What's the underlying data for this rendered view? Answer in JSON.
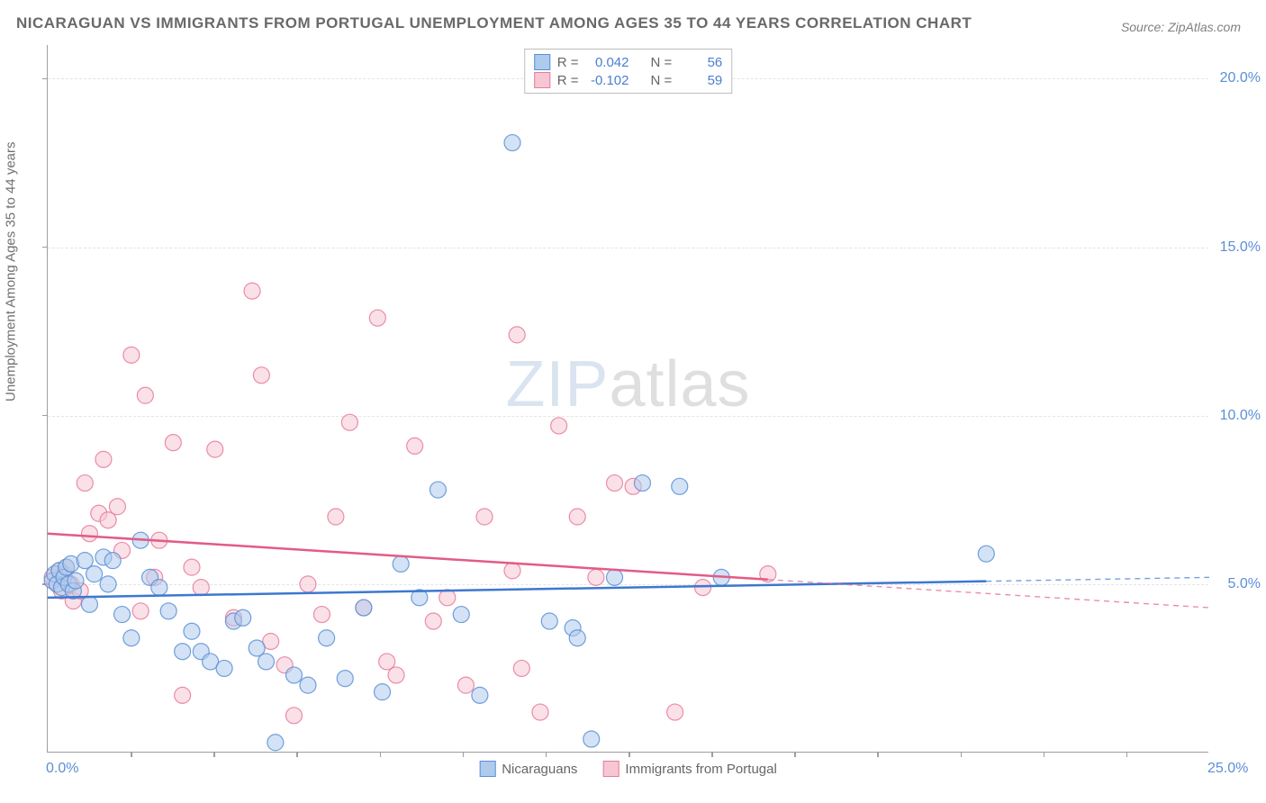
{
  "title": "NICARAGUAN VS IMMIGRANTS FROM PORTUGAL UNEMPLOYMENT AMONG AGES 35 TO 44 YEARS CORRELATION CHART",
  "source": "Source: ZipAtlas.com",
  "y_axis_label": "Unemployment Among Ages 35 to 44 years",
  "watermark_zip": "ZIP",
  "watermark_atlas": "atlas",
  "chart": {
    "type": "scatter",
    "xlim": [
      0,
      25
    ],
    "ylim": [
      0,
      21.0
    ],
    "x_ticks": [
      {
        "v": 0,
        "label": "0.0%"
      },
      {
        "v": 25,
        "label": "25.0%"
      }
    ],
    "y_ticks": [
      {
        "v": 5,
        "label": "5.0%"
      },
      {
        "v": 10,
        "label": "10.0%"
      },
      {
        "v": 15,
        "label": "15.0%"
      },
      {
        "v": 20,
        "label": "20.0%"
      }
    ],
    "grid_y": [
      5,
      10,
      15,
      20
    ],
    "background_color": "#ffffff",
    "grid_color": "#e4e4e4",
    "axis_color": "#9e9e9e",
    "tick_label_color": "#5b8fd6",
    "marker_radius": 9,
    "marker_opacity": 0.55,
    "series": [
      {
        "name": "Nicaraguans",
        "color_fill": "#aecbec",
        "color_stroke": "#5b8fd6",
        "R": "0.042",
        "N": "56",
        "trend": {
          "y_at_x0": 4.6,
          "y_at_x25": 5.2,
          "solid_until_x": 20.2,
          "line_color": "#3d78cf",
          "line_width": 2.5
        },
        "points": [
          [
            0.1,
            5.1
          ],
          [
            0.15,
            5.3
          ],
          [
            0.2,
            5.0
          ],
          [
            0.25,
            5.4
          ],
          [
            0.3,
            4.9
          ],
          [
            0.35,
            5.2
          ],
          [
            0.4,
            5.5
          ],
          [
            0.45,
            5.0
          ],
          [
            0.5,
            5.6
          ],
          [
            0.55,
            4.8
          ],
          [
            0.6,
            5.1
          ],
          [
            0.8,
            5.7
          ],
          [
            0.9,
            4.4
          ],
          [
            1.0,
            5.3
          ],
          [
            1.2,
            5.8
          ],
          [
            1.3,
            5.0
          ],
          [
            1.4,
            5.7
          ],
          [
            1.6,
            4.1
          ],
          [
            1.8,
            3.4
          ],
          [
            2.0,
            6.3
          ],
          [
            2.2,
            5.2
          ],
          [
            2.4,
            4.9
          ],
          [
            2.6,
            4.2
          ],
          [
            2.9,
            3.0
          ],
          [
            3.1,
            3.6
          ],
          [
            3.3,
            3.0
          ],
          [
            3.5,
            2.7
          ],
          [
            3.8,
            2.5
          ],
          [
            4.0,
            3.9
          ],
          [
            4.2,
            4.0
          ],
          [
            4.5,
            3.1
          ],
          [
            4.7,
            2.7
          ],
          [
            4.9,
            0.3
          ],
          [
            5.3,
            2.3
          ],
          [
            5.6,
            2.0
          ],
          [
            6.0,
            3.4
          ],
          [
            6.4,
            2.2
          ],
          [
            6.8,
            4.3
          ],
          [
            7.2,
            1.8
          ],
          [
            7.6,
            5.6
          ],
          [
            8.0,
            4.6
          ],
          [
            8.4,
            7.8
          ],
          [
            8.9,
            4.1
          ],
          [
            9.3,
            1.7
          ],
          [
            10.0,
            18.1
          ],
          [
            10.8,
            3.9
          ],
          [
            11.3,
            3.7
          ],
          [
            11.4,
            3.4
          ],
          [
            11.7,
            0.4
          ],
          [
            12.2,
            5.2
          ],
          [
            12.8,
            8.0
          ],
          [
            13.6,
            7.9
          ],
          [
            14.5,
            5.2
          ],
          [
            20.2,
            5.9
          ]
        ]
      },
      {
        "name": "Immigrants from Portugal",
        "color_fill": "#f6c7d3",
        "color_stroke": "#e77a9a",
        "R": "-0.102",
        "N": "59",
        "trend": {
          "y_at_x0": 6.5,
          "y_at_x25": 4.3,
          "solid_until_x": 15.5,
          "line_color": "#e35b85",
          "line_width": 2.5
        },
        "points": [
          [
            0.1,
            5.2
          ],
          [
            0.2,
            5.0
          ],
          [
            0.25,
            5.4
          ],
          [
            0.3,
            4.8
          ],
          [
            0.35,
            5.3
          ],
          [
            0.4,
            5.5
          ],
          [
            0.5,
            5.0
          ],
          [
            0.55,
            4.5
          ],
          [
            0.7,
            4.8
          ],
          [
            0.8,
            8.0
          ],
          [
            0.9,
            6.5
          ],
          [
            1.1,
            7.1
          ],
          [
            1.2,
            8.7
          ],
          [
            1.3,
            6.9
          ],
          [
            1.5,
            7.3
          ],
          [
            1.6,
            6.0
          ],
          [
            1.8,
            11.8
          ],
          [
            2.0,
            4.2
          ],
          [
            2.1,
            10.6
          ],
          [
            2.3,
            5.2
          ],
          [
            2.4,
            6.3
          ],
          [
            2.7,
            9.2
          ],
          [
            2.9,
            1.7
          ],
          [
            3.1,
            5.5
          ],
          [
            3.3,
            4.9
          ],
          [
            3.6,
            9.0
          ],
          [
            4.0,
            4.0
          ],
          [
            4.4,
            13.7
          ],
          [
            4.6,
            11.2
          ],
          [
            4.8,
            3.3
          ],
          [
            5.1,
            2.6
          ],
          [
            5.3,
            1.1
          ],
          [
            5.6,
            5.0
          ],
          [
            5.9,
            4.1
          ],
          [
            6.2,
            7.0
          ],
          [
            6.5,
            9.8
          ],
          [
            6.8,
            4.3
          ],
          [
            7.1,
            12.9
          ],
          [
            7.3,
            2.7
          ],
          [
            7.5,
            2.3
          ],
          [
            7.9,
            9.1
          ],
          [
            8.3,
            3.9
          ],
          [
            8.6,
            4.6
          ],
          [
            9.0,
            2.0
          ],
          [
            9.4,
            7.0
          ],
          [
            10.0,
            5.4
          ],
          [
            10.1,
            12.4
          ],
          [
            10.2,
            2.5
          ],
          [
            10.6,
            1.2
          ],
          [
            11.0,
            9.7
          ],
          [
            11.4,
            7.0
          ],
          [
            11.8,
            5.2
          ],
          [
            12.2,
            8.0
          ],
          [
            12.6,
            7.9
          ],
          [
            13.5,
            1.2
          ],
          [
            14.1,
            4.9
          ],
          [
            15.5,
            5.3
          ]
        ]
      }
    ]
  },
  "stats_labels": {
    "R": "R =",
    "N": "N ="
  },
  "bottom_legend": [
    {
      "label": "Nicaraguans",
      "fill": "#aecbec",
      "stroke": "#5b8fd6"
    },
    {
      "label": "Immigrants from Portugal",
      "fill": "#f6c7d3",
      "stroke": "#e77a9a"
    }
  ]
}
